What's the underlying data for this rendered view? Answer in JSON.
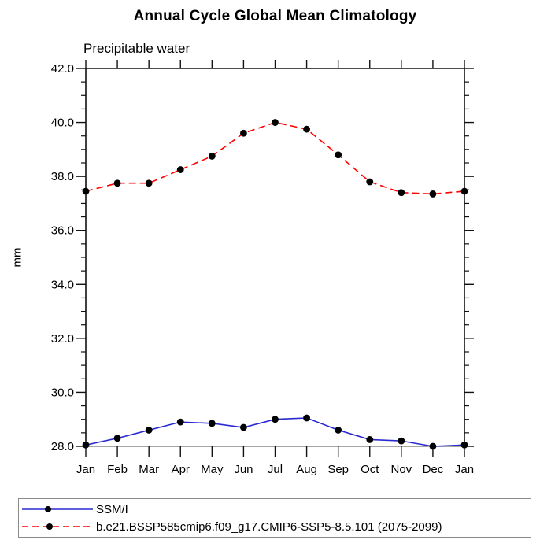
{
  "chart_data": {
    "type": "line",
    "title": "Annual Cycle Global Mean Climatology",
    "subtitle": "Precipitable water",
    "ylabel": "mm",
    "categories": [
      "Jan",
      "Feb",
      "Mar",
      "Apr",
      "May",
      "Jun",
      "Jul",
      "Aug",
      "Sep",
      "Oct",
      "Nov",
      "Dec",
      "Jan"
    ],
    "ylim": [
      28.0,
      42.0
    ],
    "y_major_step": 2.0,
    "y_minor_step": 0.5,
    "y_tick_labels": [
      "28.0",
      "30.0",
      "32.0",
      "34.0",
      "36.0",
      "38.0",
      "40.0",
      "42.0"
    ],
    "grid": false,
    "legend_position": "bottom-left-box",
    "marker_color": "#000000",
    "series": [
      {
        "name": "SSM/I",
        "color": "#2a2ad2",
        "line_style": "solid",
        "marker": "filled-circle",
        "values": [
          28.05,
          28.3,
          28.6,
          28.9,
          28.85,
          28.7,
          29.0,
          29.05,
          28.6,
          28.25,
          28.2,
          28.0,
          28.05
        ]
      },
      {
        "name": "b.e21.BSSP585cmip6.f09_g17.CMIP6-SSP5-8.5.101 (2075-2099)",
        "color": "#ff0000",
        "line_style": "dashed",
        "marker": "filled-circle",
        "values": [
          37.45,
          37.75,
          37.75,
          38.25,
          38.75,
          39.6,
          40.0,
          39.75,
          38.8,
          37.8,
          37.4,
          37.35,
          37.45
        ]
      }
    ]
  }
}
